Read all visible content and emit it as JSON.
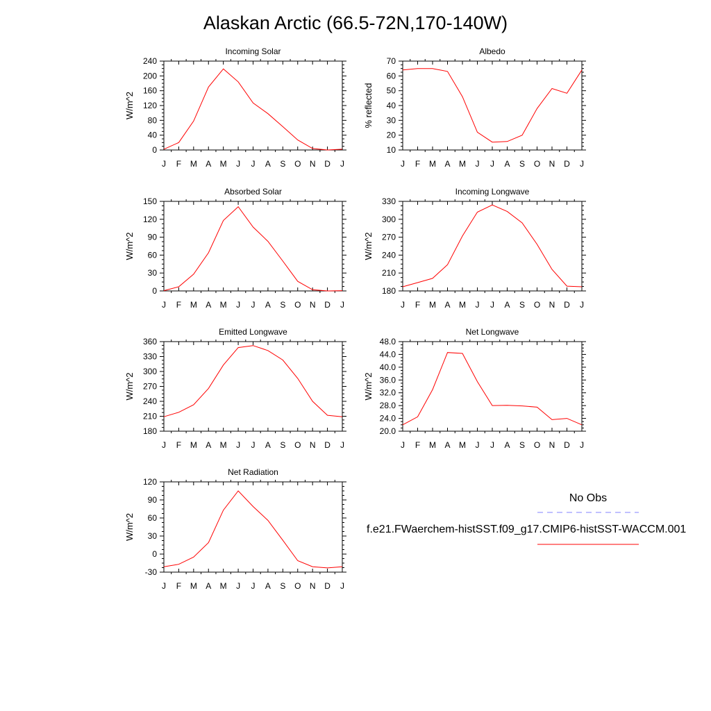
{
  "title": "Alaskan Arctic (66.5-72N,170-140W)",
  "colors": {
    "model_line": "#ff0000",
    "obs_line": "#8080ff",
    "axis": "#000000"
  },
  "chart_data": [
    {
      "type": "line",
      "title": "Incoming Solar",
      "ylabel": "W/m^2",
      "categories": [
        "J",
        "F",
        "M",
        "A",
        "M",
        "J",
        "J",
        "A",
        "S",
        "O",
        "N",
        "D",
        "J"
      ],
      "yticks": [
        "0",
        "40",
        "80",
        "120",
        "160",
        "200",
        "240"
      ],
      "ylim": [
        0,
        240
      ],
      "series": [
        {
          "values": [
            2,
            20,
            78,
            170,
            219,
            184,
            127,
            98,
            63,
            27,
            4,
            0,
            2
          ]
        }
      ]
    },
    {
      "type": "line",
      "title": "Albedo",
      "ylabel": "% reflected",
      "categories": [
        "J",
        "F",
        "M",
        "A",
        "M",
        "J",
        "J",
        "A",
        "S",
        "O",
        "N",
        "D",
        "J"
      ],
      "yticks": [
        "10",
        "20",
        "30",
        "40",
        "50",
        "60",
        "70"
      ],
      "ylim": [
        10,
        70
      ],
      "series": [
        {
          "values": [
            64,
            65,
            65,
            63,
            46,
            22,
            15.3,
            15.7,
            20,
            38,
            51.5,
            48.3,
            64
          ]
        }
      ]
    },
    {
      "type": "line",
      "title": "Absorbed Solar",
      "ylabel": "W/m^2",
      "categories": [
        "J",
        "F",
        "M",
        "A",
        "M",
        "J",
        "J",
        "A",
        "S",
        "O",
        "N",
        "D",
        "J"
      ],
      "yticks": [
        "0",
        "30",
        "60",
        "90",
        "120",
        "150"
      ],
      "ylim": [
        0,
        150
      ],
      "series": [
        {
          "values": [
            0.5,
            7,
            28,
            64,
            118,
            141,
            107,
            83,
            50,
            16,
            2,
            0,
            0.5
          ]
        }
      ]
    },
    {
      "type": "line",
      "title": "Incoming Longwave",
      "ylabel": "W/m^2",
      "categories": [
        "J",
        "F",
        "M",
        "A",
        "M",
        "J",
        "J",
        "A",
        "S",
        "O",
        "N",
        "D",
        "J"
      ],
      "yticks": [
        "180",
        "210",
        "240",
        "270",
        "300",
        "330"
      ],
      "ylim": [
        180,
        330
      ],
      "series": [
        {
          "values": [
            187,
            194,
            201,
            224,
            272,
            312,
            324,
            313,
            294,
            258,
            216,
            188,
            187
          ]
        }
      ]
    },
    {
      "type": "line",
      "title": "Emitted Longwave",
      "ylabel": "W/m^2",
      "categories": [
        "J",
        "F",
        "M",
        "A",
        "M",
        "J",
        "J",
        "A",
        "S",
        "O",
        "N",
        "D",
        "J"
      ],
      "yticks": [
        "180",
        "210",
        "240",
        "270",
        "300",
        "330",
        "360"
      ],
      "ylim": [
        180,
        360
      ],
      "series": [
        {
          "values": [
            209,
            218,
            233,
            266,
            313,
            348,
            352,
            342,
            323,
            286,
            240,
            212,
            209
          ]
        }
      ]
    },
    {
      "type": "line",
      "title": "Net Longwave",
      "ylabel": "W/m^2",
      "categories": [
        "J",
        "F",
        "M",
        "A",
        "M",
        "J",
        "J",
        "A",
        "S",
        "O",
        "N",
        "D",
        "J"
      ],
      "yticks": [
        "20.0",
        "24.0",
        "28.0",
        "32.0",
        "36.0",
        "40.0",
        "44.0",
        "48.0"
      ],
      "ylim": [
        20,
        48
      ],
      "series": [
        {
          "values": [
            22,
            24.5,
            33,
            44.6,
            44.3,
            35.5,
            28,
            28.1,
            27.9,
            27.5,
            23.6,
            24,
            22
          ]
        }
      ]
    },
    {
      "type": "line",
      "title": "Net Radiation",
      "ylabel": "W/m^2",
      "categories": [
        "J",
        "F",
        "M",
        "A",
        "M",
        "J",
        "J",
        "A",
        "S",
        "O",
        "N",
        "D",
        "J"
      ],
      "yticks": [
        "-30",
        "0",
        "30",
        "60",
        "90",
        "120"
      ],
      "ylim": [
        -30,
        120
      ],
      "series": [
        {
          "values": [
            -21,
            -17,
            -5,
            19,
            73,
            105,
            79,
            56,
            23,
            -11,
            -21,
            -23,
            -21
          ]
        }
      ]
    }
  ],
  "legend": {
    "obs_label": "No Obs",
    "model_label": "f.e21.FWaerchem-histSST.f09_g17.CMIP6-histSST-WACCM.001"
  }
}
